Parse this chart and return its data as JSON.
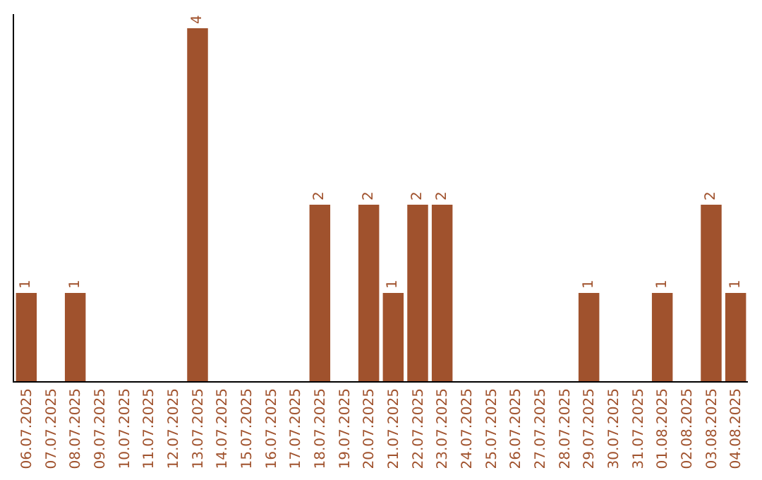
{
  "chart_data": {
    "type": "bar",
    "categories": [
      "06.07.2025",
      "07.07.2025",
      "08.07.2025",
      "09.07.2025",
      "10.07.2025",
      "11.07.2025",
      "12.07.2025",
      "13.07.2025",
      "14.07.2025",
      "15.07.2025",
      "16.07.2025",
      "17.07.2025",
      "18.07.2025",
      "19.07.2025",
      "20.07.2025",
      "21.07.2025",
      "22.07.2025",
      "23.07.2025",
      "24.07.2025",
      "25.07.2025",
      "26.07.2025",
      "27.07.2025",
      "28.07.2025",
      "29.07.2025",
      "30.07.2025",
      "31.07.2025",
      "01.08.2025",
      "02.08.2025",
      "03.08.2025",
      "04.08.2025"
    ],
    "values": [
      1,
      0,
      1,
      0,
      0,
      0,
      0,
      4,
      0,
      0,
      0,
      0,
      2,
      0,
      2,
      1,
      2,
      2,
      0,
      0,
      0,
      0,
      0,
      1,
      0,
      0,
      1,
      0,
      2,
      1
    ],
    "value_labels": [
      "1",
      null,
      "1",
      null,
      null,
      null,
      null,
      "4",
      null,
      null,
      null,
      null,
      "2",
      null,
      "2",
      "1",
      "2",
      "2",
      null,
      null,
      null,
      null,
      null,
      "1",
      null,
      null,
      "1",
      null,
      "2",
      "1"
    ],
    "color": "#a0522d",
    "ylim": [
      0,
      4.16
    ],
    "grid": false,
    "legend": false
  }
}
